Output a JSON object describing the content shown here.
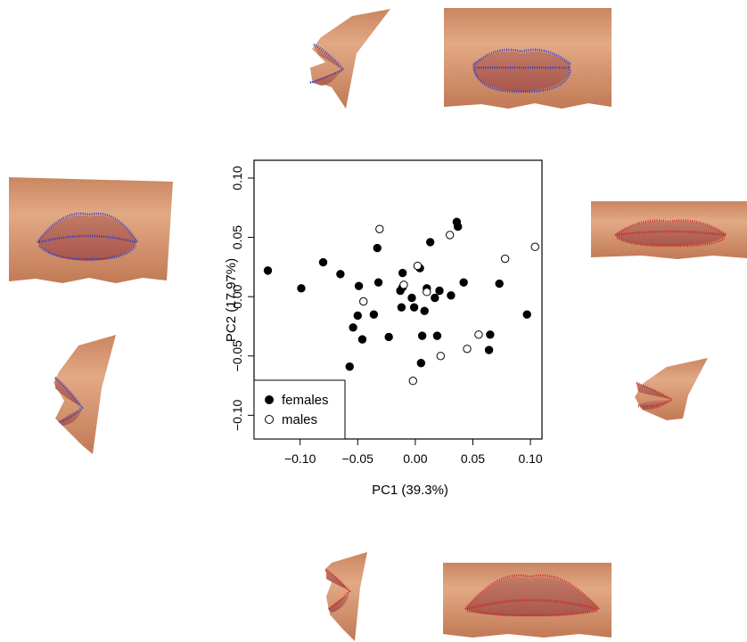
{
  "chart_data": {
    "type": "scatter",
    "xlabel": "PC1 (39.3%)",
    "ylabel": "PC2 (17.97%)",
    "xlim": [
      -0.14,
      0.11
    ],
    "ylim": [
      -0.12,
      0.115
    ],
    "xticks": [
      -0.1,
      -0.05,
      0.0,
      0.05,
      0.1
    ],
    "xtick_labels": [
      "−0.10",
      "−0.05",
      "0.00",
      "0.05",
      "0.10"
    ],
    "yticks": [
      -0.1,
      -0.05,
      0.0,
      0.05,
      0.1
    ],
    "ytick_labels": [
      "−0.10",
      "−0.05",
      "0.00",
      "0.05",
      "0.10"
    ],
    "legend_position": "bottom-left",
    "grid": false,
    "series": [
      {
        "name": "females",
        "marker": "filled-circle",
        "points": [
          [
            -0.128,
            0.022
          ],
          [
            -0.099,
            0.007
          ],
          [
            -0.08,
            0.029
          ],
          [
            -0.065,
            0.019
          ],
          [
            -0.057,
            -0.059
          ],
          [
            -0.054,
            -0.026
          ],
          [
            -0.05,
            -0.016
          ],
          [
            -0.049,
            0.009
          ],
          [
            -0.046,
            -0.036
          ],
          [
            -0.036,
            -0.015
          ],
          [
            -0.033,
            0.041
          ],
          [
            -0.032,
            0.012
          ],
          [
            -0.023,
            -0.034
          ],
          [
            -0.013,
            0.005
          ],
          [
            -0.012,
            -0.009
          ],
          [
            -0.011,
            0.02
          ],
          [
            -0.011,
            0.008
          ],
          [
            -0.003,
            -0.001
          ],
          [
            -0.001,
            -0.009
          ],
          [
            0.004,
            0.024
          ],
          [
            0.005,
            -0.056
          ],
          [
            0.006,
            -0.033
          ],
          [
            0.008,
            -0.012
          ],
          [
            0.01,
            0.007
          ],
          [
            0.013,
            0.046
          ],
          [
            0.017,
            -0.001
          ],
          [
            0.019,
            -0.033
          ],
          [
            0.021,
            0.005
          ],
          [
            0.031,
            0.001
          ],
          [
            0.036,
            0.063
          ],
          [
            0.037,
            0.059
          ],
          [
            0.042,
            0.012
          ],
          [
            0.064,
            -0.045
          ],
          [
            0.065,
            -0.032
          ],
          [
            0.073,
            0.011
          ],
          [
            0.097,
            -0.015
          ]
        ]
      },
      {
        "name": "males",
        "marker": "open-circle",
        "points": [
          [
            -0.031,
            0.057
          ],
          [
            -0.045,
            -0.004
          ],
          [
            -0.01,
            0.01
          ],
          [
            0.002,
            0.026
          ],
          [
            -0.002,
            -0.071
          ],
          [
            0.01,
            0.004
          ],
          [
            0.022,
            -0.05
          ],
          [
            0.03,
            0.052
          ],
          [
            0.045,
            -0.044
          ],
          [
            0.055,
            -0.032
          ],
          [
            0.078,
            0.032
          ],
          [
            0.104,
            0.042
          ]
        ]
      }
    ]
  },
  "colors": {
    "female_marker": "#000000",
    "male_marker": "#ffffff",
    "shape_blue": "#2b35c9",
    "shape_red": "#cc2222",
    "skin_light": "#dba07c",
    "skin_dark": "#b96f4d",
    "lip": "#b9685a"
  },
  "images": [
    {
      "name": "top-side-profile",
      "outline": "blue"
    },
    {
      "name": "top-front-view",
      "outline": "blue"
    },
    {
      "name": "left-front-view",
      "outline": "blue"
    },
    {
      "name": "left-side-profile",
      "outline": "blue"
    },
    {
      "name": "right-front-view",
      "outline": "red"
    },
    {
      "name": "right-side-profile",
      "outline": "red"
    },
    {
      "name": "bottom-side-profile",
      "outline": "red"
    },
    {
      "name": "bottom-front-view",
      "outline": "red"
    }
  ]
}
